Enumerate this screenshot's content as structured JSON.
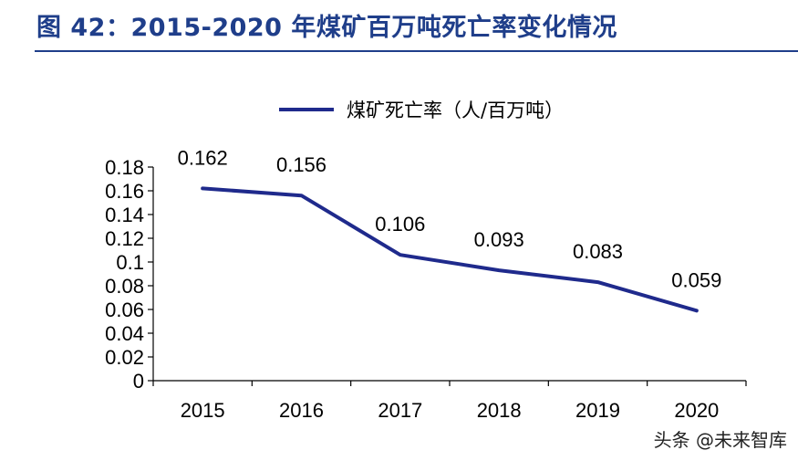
{
  "figure": {
    "title": "图 42：2015-2020 年煤矿百万吨死亡率变化情况"
  },
  "watermark": "头条 @未来智库",
  "colors": {
    "series": "#1f2a8c",
    "title": "#1f3e8a",
    "axis": "#000000"
  },
  "chart_data": {
    "type": "line",
    "title": "",
    "xlabel": "",
    "ylabel": "",
    "categories": [
      "2015",
      "2016",
      "2017",
      "2018",
      "2019",
      "2020"
    ],
    "series": [
      {
        "name": "煤矿死亡率（人/百万吨）",
        "values": [
          0.162,
          0.156,
          0.106,
          0.093,
          0.083,
          0.059
        ],
        "labels": [
          "0.162",
          "0.156",
          "0.106",
          "0.093",
          "0.083",
          "0.059"
        ]
      }
    ],
    "ylim": [
      0,
      0.18
    ],
    "yticks": [
      0,
      0.02,
      0.04,
      0.06,
      0.08,
      0.1,
      0.12,
      0.14,
      0.16,
      0.18
    ],
    "ytick_labels": [
      "0",
      "0.02",
      "0.04",
      "0.06",
      "0.08",
      "0.1",
      "0.12",
      "0.14",
      "0.16",
      "0.18"
    ],
    "legend": "top",
    "grid": false
  }
}
